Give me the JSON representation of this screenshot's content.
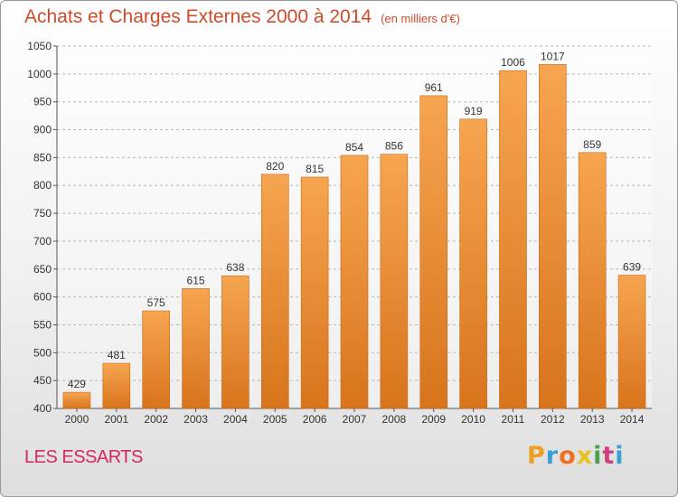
{
  "title": "Achats et Charges Externes 2000 à 2014",
  "unit": "(en milliers d'€)",
  "commune": "LES ESSARTS",
  "logo": {
    "letters": [
      "P",
      "r",
      "o",
      "x",
      "i",
      "t",
      "i"
    ],
    "colors": [
      "#f0a020",
      "#3aa0d8",
      "#f07020",
      "#e8c020",
      "#48a048",
      "#d04080",
      "#3aa0d8"
    ]
  },
  "chart_data": {
    "type": "bar",
    "categories": [
      "2000",
      "2001",
      "2002",
      "2003",
      "2004",
      "2005",
      "2006",
      "2007",
      "2008",
      "2009",
      "2010",
      "2011",
      "2012",
      "2013",
      "2014"
    ],
    "values": [
      429,
      481,
      575,
      615,
      638,
      820,
      815,
      854,
      856,
      961,
      919,
      1006,
      1017,
      859,
      639
    ],
    "ylim": [
      400,
      1050
    ],
    "yticks": [
      400,
      450,
      500,
      550,
      600,
      650,
      700,
      750,
      800,
      850,
      900,
      950,
      1000,
      1050
    ],
    "bar_color": "#f28f33",
    "grid": true
  }
}
